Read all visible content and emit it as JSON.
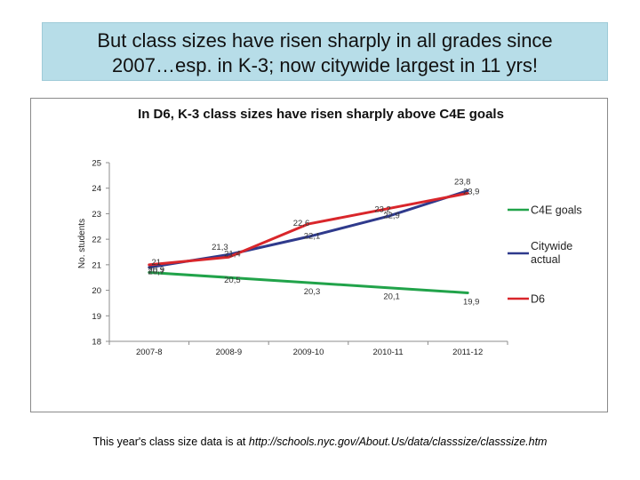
{
  "slide": {
    "title_line1": "But class sizes have risen sharply in all grades since",
    "title_line2": "2007…esp. in K-3; now citywide largest in 11 yrs!",
    "footer_text": "This year's class size data is at",
    "footer_url": "http://schools.nyc.gov/About.Us/data/classsize/classsize.htm"
  },
  "chart_data": {
    "type": "line",
    "title": "In D6, K-3 class sizes have risen sharply above C4E goals",
    "xlabel": "",
    "ylabel": "No. students",
    "categories": [
      "2007-8",
      "2008-9",
      "2009-10",
      "2010-11",
      "2011-12"
    ],
    "ylim": [
      18,
      25
    ],
    "yticks": [
      "18",
      "19",
      "20",
      "21",
      "22",
      "23",
      "24",
      "25"
    ],
    "grid": false,
    "legend_position": "right",
    "series": [
      {
        "name": "C4E goals",
        "color": "#21a34a",
        "values": [
          20.7,
          20.5,
          20.3,
          20.1,
          19.9
        ],
        "labels": [
          "20,7",
          "20,5",
          "20,3",
          "20,1",
          "19,9"
        ]
      },
      {
        "name": "Citywide actual",
        "color": "#2f3a8c",
        "values": [
          20.9,
          21.4,
          22.1,
          22.9,
          23.9
        ],
        "labels": [
          "20,9",
          "21,4",
          "22,1",
          "22,9",
          "23,9"
        ]
      },
      {
        "name": "D6",
        "color": "#d9262b",
        "values": [
          21.0,
          21.3,
          22.6,
          23.2,
          23.8
        ],
        "labels": [
          "21",
          "21,3",
          "22,6",
          "23,2",
          "23,8"
        ]
      }
    ]
  }
}
